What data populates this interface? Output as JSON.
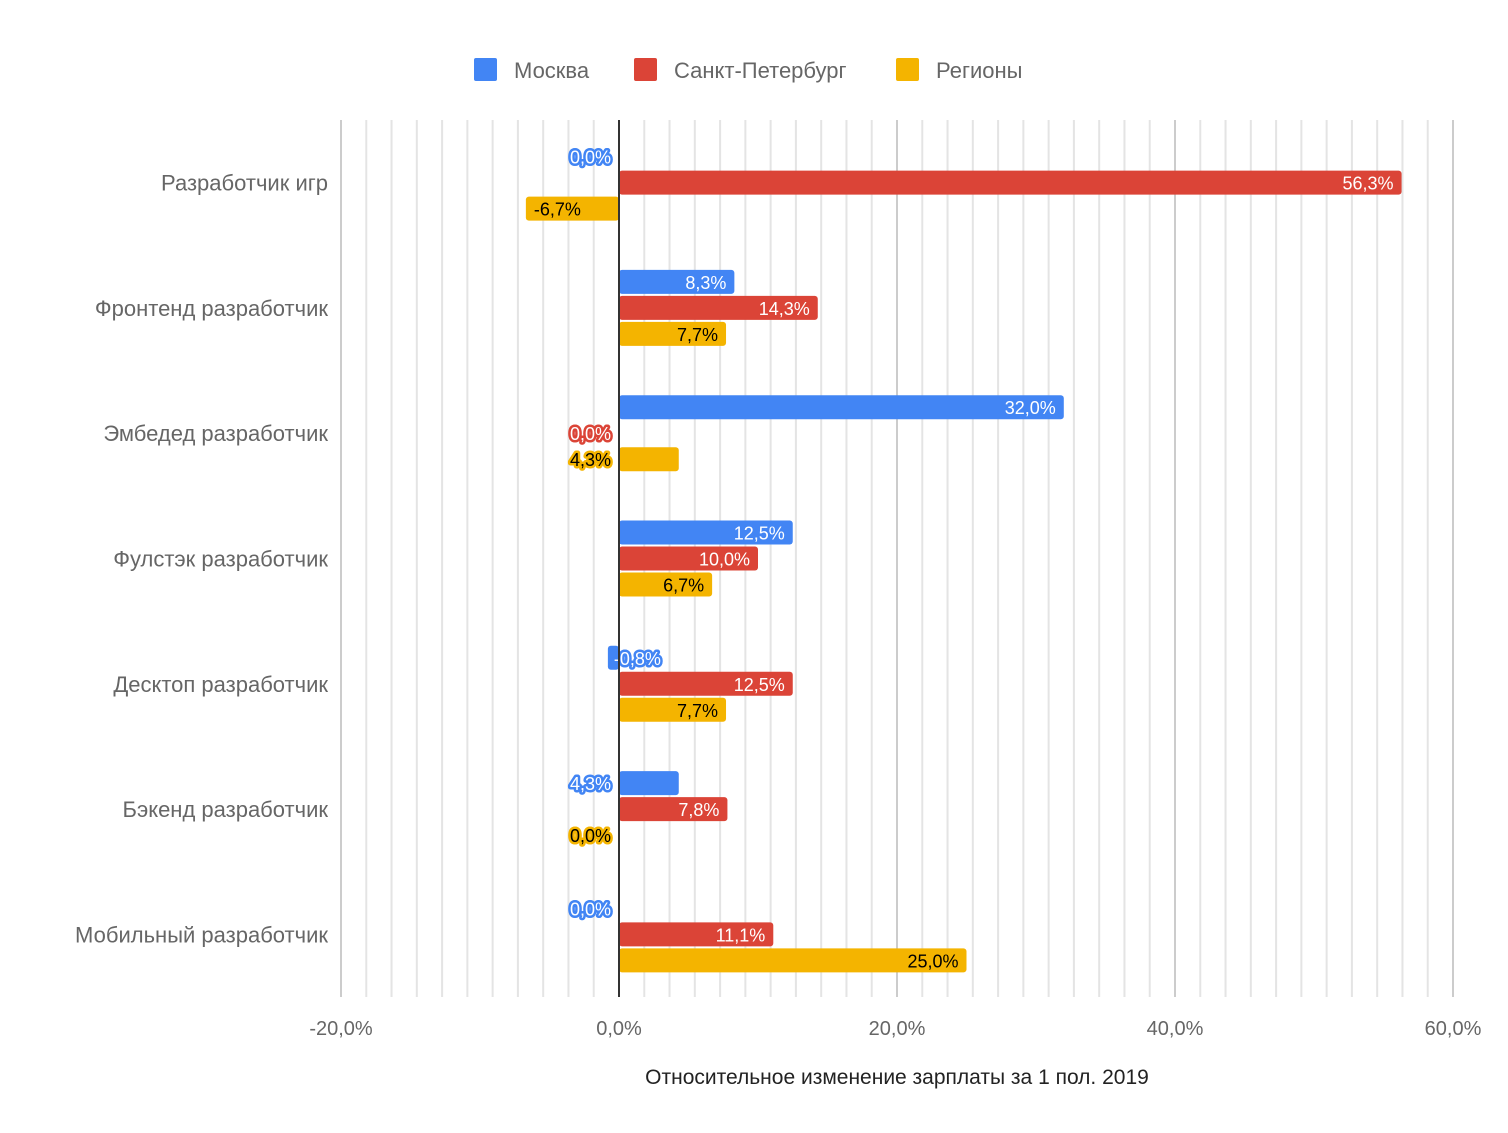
{
  "chart_data": {
    "type": "bar",
    "orientation": "horizontal",
    "title": "",
    "xlabel": "Относительное изменение зарплаты за 1 пол. 2019",
    "ylabel": "",
    "xlim": [
      -20,
      60
    ],
    "x_ticks": [
      "-20,0%",
      "0,0%",
      "20,0%",
      "40,0%",
      "60,0%"
    ],
    "grid": true,
    "legend_position": "top",
    "categories": [
      "Разработчик игр",
      "Фронтенд разработчик",
      "Эмбедед разработчик",
      "Фулстэк разработчик",
      "Десктоп разработчик",
      "Бэкенд разработчик",
      "Мобильный разработчик"
    ],
    "series": [
      {
        "name": "Москва",
        "color": "#4285f4",
        "values": [
          0.0,
          8.3,
          32.0,
          12.5,
          -0.8,
          4.3,
          0.0
        ],
        "labels": [
          "0,0%",
          "8,3%",
          "32,0%",
          "12,5%",
          "-0,8%",
          "4,3%",
          "0,0%"
        ]
      },
      {
        "name": "Санкт-Петербург",
        "color": "#db4437",
        "values": [
          56.3,
          14.3,
          0.0,
          10.0,
          12.5,
          7.8,
          11.1
        ],
        "labels": [
          "56,3%",
          "14,3%",
          "0,0%",
          "10,0%",
          "12,5%",
          "7,8%",
          "11,1%"
        ]
      },
      {
        "name": "Регионы",
        "color": "#f4b400",
        "values": [
          -6.7,
          7.7,
          4.3,
          6.7,
          7.7,
          0.0,
          25.0
        ],
        "labels": [
          "-6,7%",
          "7,7%",
          "4,3%",
          "6,7%",
          "7,7%",
          "0,0%",
          "25,0%"
        ]
      }
    ]
  }
}
